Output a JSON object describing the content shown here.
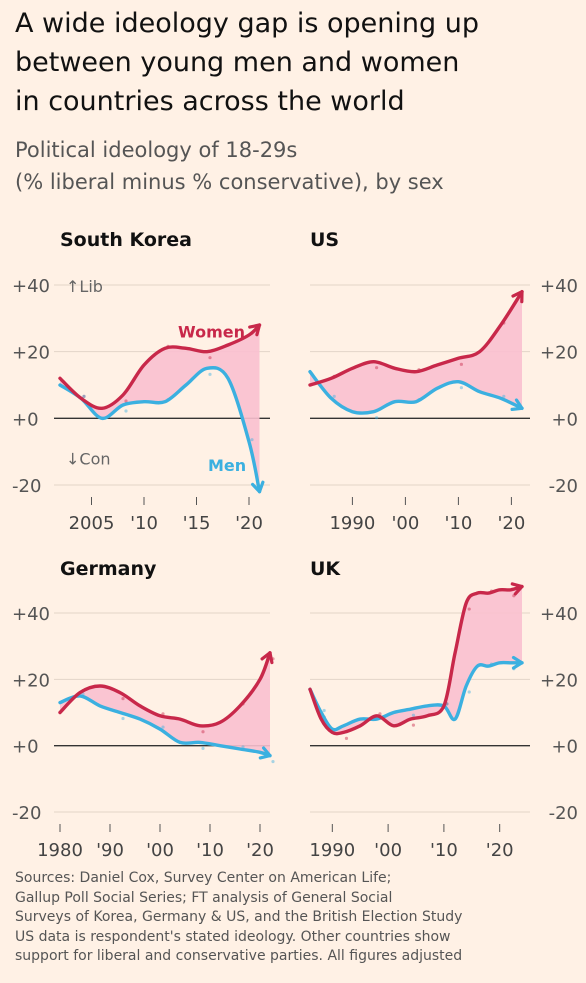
{
  "title": "A wide ideology gap is opening up\nbetween young men and women\nin countries across the world",
  "subtitle": "Political ideology of 18-29s\n(% liberal minus % conservative), by sex",
  "sources": "Sources: Daniel Cox, Survey Center on American Life;\nGallup Poll Social Series; FT analysis of General Social\nSurveys of Korea, Germany & US, and the British Election Study\nUS data is respondent's stated ideology. Other countries show\nsupport for liberal and conservative parties. All figures adjusted",
  "colors": {
    "women": "#c8284a",
    "men": "#3bb0e0",
    "gap_fill": "#f9c0cf",
    "background": "#fff1e5"
  },
  "annotations": {
    "lib": "↑Lib",
    "con": "↓Con",
    "women": "Women",
    "men": "Men"
  },
  "chart_data": [
    {
      "type": "line",
      "title": "South Korea",
      "ylim": [
        -20,
        40
      ],
      "y_ticks": [
        "+40",
        "+20",
        "+0",
        "-20"
      ],
      "x_ticks": [
        {
          "x": 2005,
          "label": "2005"
        },
        {
          "x": 2010,
          "label": "'10"
        },
        {
          "x": 2015,
          "label": "'15"
        },
        {
          "x": 2020,
          "label": "'20"
        }
      ],
      "xlim": [
        2002,
        2022
      ],
      "series": [
        {
          "name": "Women",
          "x": [
            2002,
            2004,
            2006,
            2008,
            2010,
            2012,
            2014,
            2016,
            2018,
            2020,
            2021
          ],
          "values": [
            12,
            6,
            3,
            7,
            16,
            21,
            21,
            20,
            22,
            25,
            28
          ]
        },
        {
          "name": "Men",
          "x": [
            2002,
            2004,
            2006,
            2008,
            2010,
            2012,
            2014,
            2016,
            2018,
            2020,
            2021
          ],
          "values": [
            10,
            6,
            0,
            4,
            5,
            5,
            10,
            15,
            12,
            -7,
            -22
          ]
        }
      ]
    },
    {
      "type": "line",
      "title": "US",
      "ylim": [
        -20,
        40
      ],
      "y_ticks": [
        "+40",
        "+20",
        "+0",
        "-20"
      ],
      "x_ticks": [
        {
          "x": 1990,
          "label": "1990"
        },
        {
          "x": 2000,
          "label": "'00"
        },
        {
          "x": 2010,
          "label": "'10"
        },
        {
          "x": 2020,
          "label": "'20"
        }
      ],
      "xlim": [
        1982,
        2022
      ],
      "series": [
        {
          "name": "Women",
          "x": [
            1982,
            1986,
            1990,
            1994,
            1998,
            2002,
            2006,
            2010,
            2014,
            2018,
            2022
          ],
          "values": [
            10,
            12,
            15,
            17,
            15,
            14,
            16,
            18,
            20,
            28,
            38
          ]
        },
        {
          "name": "Men",
          "x": [
            1982,
            1986,
            1990,
            1994,
            1998,
            2002,
            2006,
            2010,
            2014,
            2018,
            2022
          ],
          "values": [
            14,
            6,
            2,
            2,
            5,
            5,
            9,
            11,
            8,
            6,
            3
          ]
        }
      ]
    },
    {
      "type": "line",
      "title": "Germany",
      "ylim": [
        -20,
        40
      ],
      "y_ticks": [
        "+40",
        "+20",
        "+0",
        "-20"
      ],
      "x_ticks": [
        {
          "x": 1980,
          "label": "1980"
        },
        {
          "x": 1990,
          "label": "'90"
        },
        {
          "x": 2000,
          "label": "'00"
        },
        {
          "x": 2010,
          "label": "'10"
        },
        {
          "x": 2020,
          "label": "'20"
        }
      ],
      "xlim": [
        1980,
        2022
      ],
      "series": [
        {
          "name": "Women",
          "x": [
            1980,
            1984,
            1988,
            1992,
            1996,
            2000,
            2004,
            2008,
            2012,
            2016,
            2020,
            2022
          ],
          "values": [
            10,
            16,
            18,
            16,
            12,
            9,
            8,
            6,
            7,
            12,
            20,
            28
          ]
        },
        {
          "name": "Men",
          "x": [
            1980,
            1984,
            1988,
            1992,
            1996,
            2000,
            2004,
            2008,
            2012,
            2016,
            2020,
            2022
          ],
          "values": [
            13,
            15,
            12,
            10,
            8,
            5,
            1,
            1,
            0,
            -1,
            -2,
            -3
          ]
        }
      ]
    },
    {
      "type": "line",
      "title": "UK",
      "ylim": [
        -20,
        40
      ],
      "y_ticks": [
        "+40",
        "+20",
        "+0",
        "-20"
      ],
      "x_ticks": [
        {
          "x": 1990,
          "label": "1990"
        },
        {
          "x": 2000,
          "label": "'00"
        },
        {
          "x": 2010,
          "label": "'10"
        },
        {
          "x": 2020,
          "label": "'20"
        }
      ],
      "xlim": [
        1986,
        2024
      ],
      "series": [
        {
          "name": "Women",
          "x": [
            1986,
            1988,
            1990,
            1992,
            1995,
            1998,
            2001,
            2004,
            2007,
            2010,
            2012,
            2014,
            2016,
            2018,
            2020,
            2022,
            2024
          ],
          "values": [
            17,
            8,
            4,
            4,
            6,
            9,
            6,
            8,
            9,
            12,
            28,
            43,
            46,
            46,
            47,
            47,
            48
          ]
        },
        {
          "name": "Men",
          "x": [
            1986,
            1988,
            1990,
            1992,
            1995,
            1998,
            2001,
            2004,
            2007,
            2010,
            2012,
            2014,
            2016,
            2018,
            2020,
            2022,
            2024
          ],
          "values": [
            17,
            10,
            5,
            6,
            8,
            8,
            10,
            11,
            12,
            12,
            8,
            18,
            24,
            24,
            25,
            25,
            25
          ]
        }
      ]
    }
  ]
}
